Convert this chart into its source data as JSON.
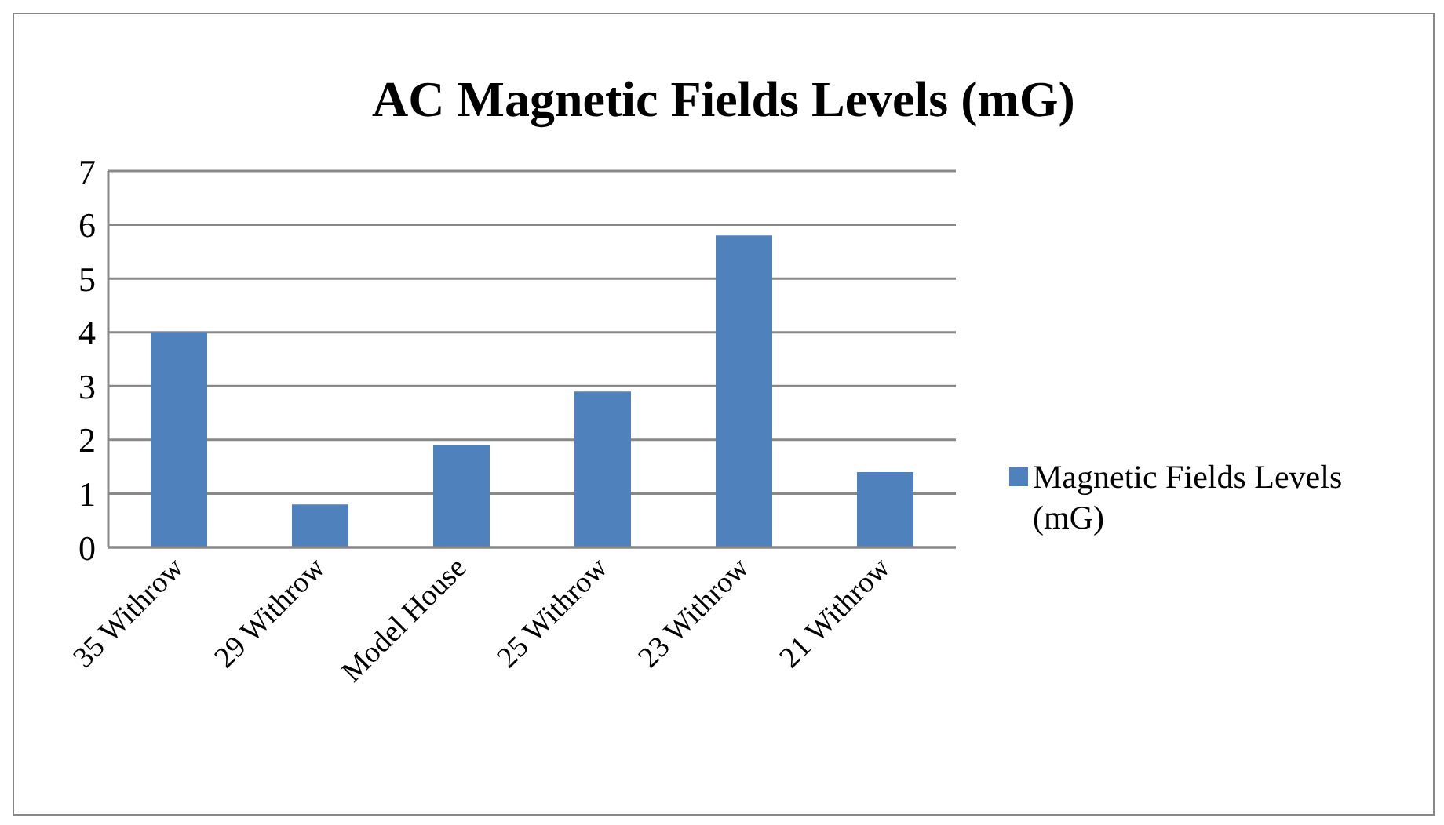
{
  "chart_data": {
    "type": "bar",
    "title": "AC Magnetic Fields Levels (mG)",
    "categories": [
      "35 Withrow",
      "29 Withrow",
      "Model House",
      "25 Withrow",
      "23 Withrow",
      "21 Withrow"
    ],
    "series": [
      {
        "name": "Magnetic Fields Levels (mG)",
        "color": "#4f81bd",
        "values": [
          4,
          0.8,
          1.9,
          2.9,
          5.8,
          1.4
        ]
      }
    ],
    "ylim": [
      0,
      7
    ],
    "yticks": [
      0,
      1,
      2,
      3,
      4,
      5,
      6,
      7
    ],
    "grid": "y",
    "legend": "right"
  }
}
